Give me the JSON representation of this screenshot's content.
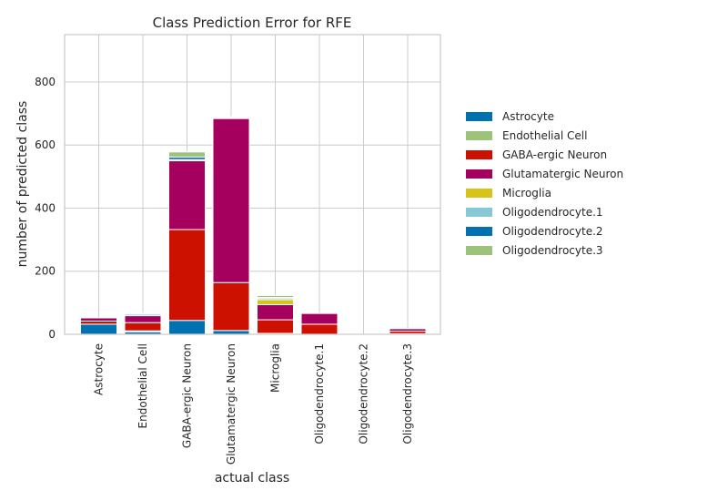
{
  "chart_data": {
    "type": "bar",
    "stacked": true,
    "title": "Class Prediction Error for RFE",
    "xlabel": "actual class",
    "ylabel": "number of predicted class",
    "ylim": [
      0,
      950
    ],
    "yticks": [
      0,
      200,
      400,
      600,
      800
    ],
    "grid": true,
    "legend_position": "right",
    "categories": [
      "Astrocyte",
      "Endothelial Cell",
      "GABA-ergic Neuron",
      "Glutamatergic Neuron",
      "Microglia",
      "Oligodendrocyte.1",
      "Oligodendrocyte.2",
      "Oligodendrocyte.3"
    ],
    "series": [
      {
        "name": "Astrocyte",
        "color": "#0072B2",
        "values": [
          32,
          8,
          44,
          12,
          3,
          0,
          0,
          2
        ]
      },
      {
        "name": "Endothelial Cell",
        "color": "#9DC27A",
        "values": [
          0,
          3,
          0,
          0,
          0,
          0,
          0,
          0
        ]
      },
      {
        "name": "GABA-ergic Neuron",
        "color": "#CC1100",
        "values": [
          10,
          26,
          288,
          152,
          43,
          32,
          0,
          8
        ]
      },
      {
        "name": "Glutamatergic Neuron",
        "color": "#A5005E",
        "values": [
          10,
          22,
          218,
          520,
          48,
          34,
          0,
          8
        ]
      },
      {
        "name": "Microglia",
        "color": "#D8C318",
        "values": [
          0,
          0,
          0,
          0,
          16,
          0,
          0,
          0
        ]
      },
      {
        "name": "Oligodendrocyte.1",
        "color": "#86C8D6",
        "values": [
          0,
          5,
          4,
          3,
          5,
          0,
          0,
          1
        ]
      },
      {
        "name": "Oligodendrocyte.2",
        "color": "#0072B2",
        "values": [
          0,
          3,
          8,
          0,
          2,
          0,
          0,
          1
        ]
      },
      {
        "name": "Oligodendrocyte.3",
        "color": "#9DC27A",
        "values": [
          0,
          0,
          16,
          3,
          6,
          0,
          0,
          0
        ]
      }
    ]
  }
}
